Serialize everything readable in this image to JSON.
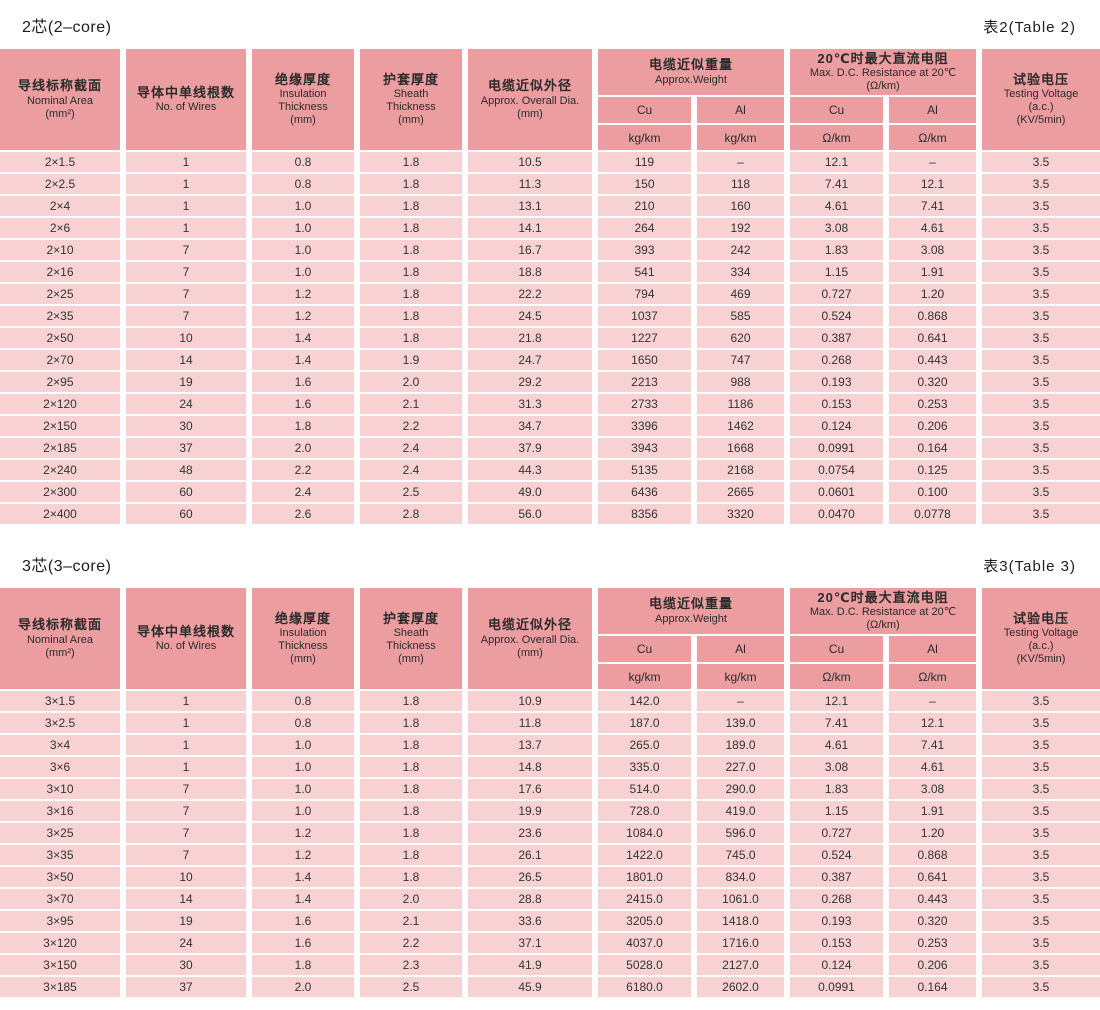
{
  "header": {
    "nominal_area": {
      "cn": "导线标称截面",
      "en": "Nominal Area",
      "unit": "(mm²)"
    },
    "wires": {
      "cn": "导体中单线根数",
      "en": "No. of Wires"
    },
    "insulation": {
      "cn": "绝缘厚度",
      "en": "Insulation Thickness",
      "unit": "(mm)"
    },
    "sheath": {
      "cn": "护套厚度",
      "en": "Sheath Thickness",
      "unit": "(mm)"
    },
    "diameter": {
      "cn": "电缆近似外径",
      "en": "Approx. Overall Dia.",
      "unit": "(mm)"
    },
    "weight": {
      "cn": "电缆近似重量",
      "en": "Approx.Weight",
      "cu": "Cu",
      "al": "Al",
      "cu_unit": "kg/km",
      "al_unit": "kg/km"
    },
    "resistance": {
      "cn": "20℃时最大直流电阻",
      "en": "Max. D.C. Resistance at 20℃",
      "unit": "(Ω/km)",
      "cu": "Cu",
      "al": "Al",
      "cu_unit": "Ω/km",
      "al_unit": "Ω/km"
    },
    "testing": {
      "cn": "试验电压",
      "en": "Testing Voltage",
      "en2": "(a.c.)",
      "unit": "(KV/5min)"
    }
  },
  "tables": [
    {
      "title": "2芯(2–core)",
      "label": "表2(Table 2)",
      "rows": [
        [
          "2×1.5",
          "1",
          "0.8",
          "1.8",
          "10.5",
          "119",
          "–",
          "12.1",
          "–",
          "3.5"
        ],
        [
          "2×2.5",
          "1",
          "0.8",
          "1.8",
          "11.3",
          "150",
          "118",
          "7.41",
          "12.1",
          "3.5"
        ],
        [
          "2×4",
          "1",
          "1.0",
          "1.8",
          "13.1",
          "210",
          "160",
          "4.61",
          "7.41",
          "3.5"
        ],
        [
          "2×6",
          "1",
          "1.0",
          "1.8",
          "14.1",
          "264",
          "192",
          "3.08",
          "4.61",
          "3.5"
        ],
        [
          "2×10",
          "7",
          "1.0",
          "1.8",
          "16.7",
          "393",
          "242",
          "1.83",
          "3.08",
          "3.5"
        ],
        [
          "2×16",
          "7",
          "1.0",
          "1.8",
          "18.8",
          "541",
          "334",
          "1.15",
          "1.91",
          "3.5"
        ],
        [
          "2×25",
          "7",
          "1.2",
          "1.8",
          "22.2",
          "794",
          "469",
          "0.727",
          "1.20",
          "3.5"
        ],
        [
          "2×35",
          "7",
          "1.2",
          "1.8",
          "24.5",
          "1037",
          "585",
          "0.524",
          "0.868",
          "3.5"
        ],
        [
          "2×50",
          "10",
          "1.4",
          "1.8",
          "21.8",
          "1227",
          "620",
          "0.387",
          "0.641",
          "3.5"
        ],
        [
          "2×70",
          "14",
          "1.4",
          "1.9",
          "24.7",
          "1650",
          "747",
          "0.268",
          "0.443",
          "3.5"
        ],
        [
          "2×95",
          "19",
          "1.6",
          "2.0",
          "29.2",
          "2213",
          "988",
          "0.193",
          "0.320",
          "3.5"
        ],
        [
          "2×120",
          "24",
          "1.6",
          "2.1",
          "31.3",
          "2733",
          "1186",
          "0.153",
          "0.253",
          "3.5"
        ],
        [
          "2×150",
          "30",
          "1.8",
          "2.2",
          "34.7",
          "3396",
          "1462",
          "0.124",
          "0.206",
          "3.5"
        ],
        [
          "2×185",
          "37",
          "2.0",
          "2.4",
          "37.9",
          "3943",
          "1668",
          "0.0991",
          "0.164",
          "3.5"
        ],
        [
          "2×240",
          "48",
          "2.2",
          "2.4",
          "44.3",
          "5135",
          "2168",
          "0.0754",
          "0.125",
          "3.5"
        ],
        [
          "2×300",
          "60",
          "2.4",
          "2.5",
          "49.0",
          "6436",
          "2665",
          "0.0601",
          "0.100",
          "3.5"
        ],
        [
          "2×400",
          "60",
          "2.6",
          "2.8",
          "56.0",
          "8356",
          "3320",
          "0.0470",
          "0.0778",
          "3.5"
        ]
      ]
    },
    {
      "title": "3芯(3–core)",
      "label": "表3(Table 3)",
      "rows": [
        [
          "3×1.5",
          "1",
          "0.8",
          "1.8",
          "10.9",
          "142.0",
          "–",
          "12.1",
          "–",
          "3.5"
        ],
        [
          "3×2.5",
          "1",
          "0.8",
          "1.8",
          "11.8",
          "187.0",
          "139.0",
          "7.41",
          "12.1",
          "3.5"
        ],
        [
          "3×4",
          "1",
          "1.0",
          "1.8",
          "13.7",
          "265.0",
          "189.0",
          "4.61",
          "7.41",
          "3.5"
        ],
        [
          "3×6",
          "1",
          "1.0",
          "1.8",
          "14.8",
          "335.0",
          "227.0",
          "3.08",
          "4.61",
          "3.5"
        ],
        [
          "3×10",
          "7",
          "1.0",
          "1.8",
          "17.6",
          "514.0",
          "290.0",
          "1.83",
          "3.08",
          "3.5"
        ],
        [
          "3×16",
          "7",
          "1.0",
          "1.8",
          "19.9",
          "728.0",
          "419.0",
          "1.15",
          "1.91",
          "3.5"
        ],
        [
          "3×25",
          "7",
          "1.2",
          "1.8",
          "23.6",
          "1084.0",
          "596.0",
          "0.727",
          "1.20",
          "3.5"
        ],
        [
          "3×35",
          "7",
          "1.2",
          "1.8",
          "26.1",
          "1422.0",
          "745.0",
          "0.524",
          "0.868",
          "3.5"
        ],
        [
          "3×50",
          "10",
          "1.4",
          "1.8",
          "26.5",
          "1801.0",
          "834.0",
          "0.387",
          "0.641",
          "3.5"
        ],
        [
          "3×70",
          "14",
          "1.4",
          "2.0",
          "28.8",
          "2415.0",
          "1061.0",
          "0.268",
          "0.443",
          "3.5"
        ],
        [
          "3×95",
          "19",
          "1.6",
          "2.1",
          "33.6",
          "3205.0",
          "1418.0",
          "0.193",
          "0.320",
          "3.5"
        ],
        [
          "3×120",
          "24",
          "1.6",
          "2.2",
          "37.1",
          "4037.0",
          "1716.0",
          "0.153",
          "0.253",
          "3.5"
        ],
        [
          "3×150",
          "30",
          "1.8",
          "2.3",
          "41.9",
          "5028.0",
          "2127.0",
          "0.124",
          "0.206",
          "3.5"
        ],
        [
          "3×185",
          "37",
          "2.0",
          "2.5",
          "45.9",
          "6180.0",
          "2602.0",
          "0.0991",
          "0.164",
          "3.5"
        ]
      ]
    }
  ],
  "colors": {
    "header_pink": "#EC9DA0",
    "row_pink": "#F8D2D2",
    "background": "#FFFFFF"
  }
}
